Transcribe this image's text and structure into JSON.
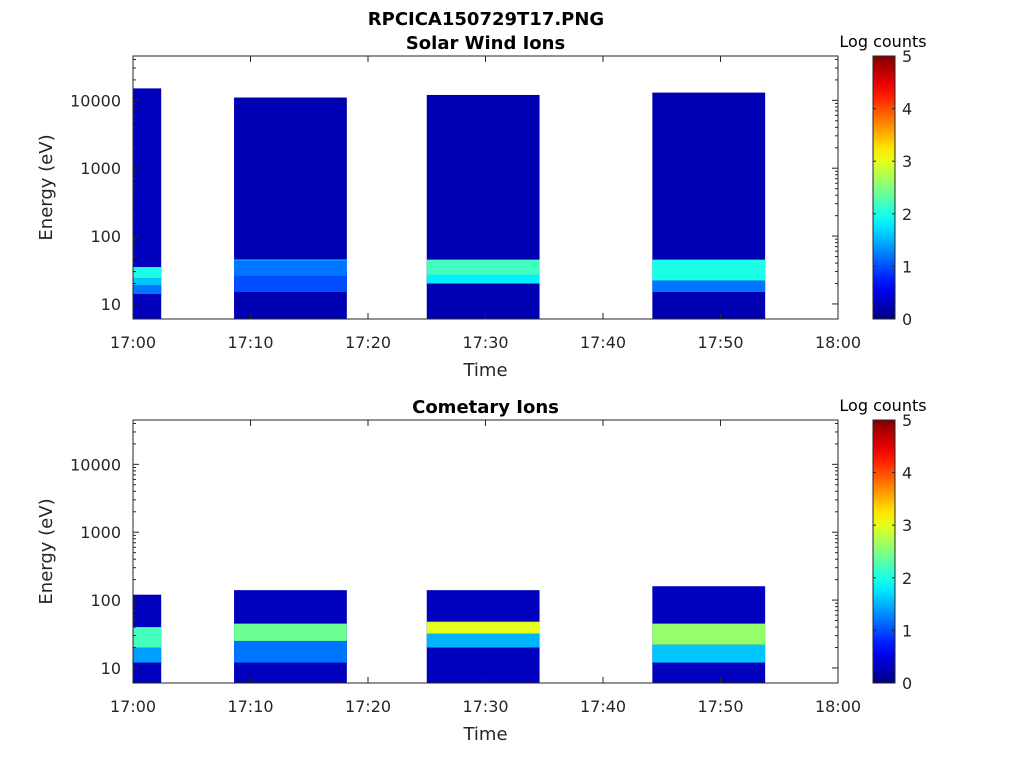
{
  "figure_title": "RPCICA150729T17.PNG",
  "chart_data": [
    {
      "type": "heatmap",
      "title": "Solar Wind Ions",
      "xlabel": "Time",
      "ylabel": "Energy (eV)",
      "x_ticks": [
        "17:00",
        "17:10",
        "17:20",
        "17:30",
        "17:40",
        "17:50",
        "18:00"
      ],
      "x_range": [
        "17:00",
        "18:00"
      ],
      "y_scale": "log",
      "y_ticks": [
        "10",
        "100",
        "1000",
        "10000"
      ],
      "y_range": [
        6,
        45000
      ],
      "colorbar": {
        "label": "Log counts",
        "ticks": [
          "0",
          "1",
          "2",
          "3",
          "4",
          "5"
        ],
        "range": [
          0,
          5
        ],
        "colormap": "jet"
      },
      "time_bins": [
        {
          "t0": 0.0,
          "t1": 2.4,
          "hi": [
            {
              "lo": 6,
              "hi": 15000,
              "v": 0.3
            },
            {
              "lo": 14,
              "hi": 20,
              "v": 1.2
            },
            {
              "lo": 19,
              "hi": 24,
              "v": 1.6
            },
            {
              "lo": 24,
              "hi": 35,
              "v": 2.0
            }
          ]
        },
        {
          "t0": 8.6,
          "t1": 18.2,
          "hi": [
            {
              "lo": 6,
              "hi": 11000,
              "v": 0.25
            },
            {
              "lo": 15,
              "hi": 30,
              "v": 1.0
            },
            {
              "lo": 30,
              "hi": 45,
              "v": 2.0
            },
            {
              "lo": 26,
              "hi": 44,
              "v": 1.2
            }
          ]
        },
        {
          "t0": 25.0,
          "t1": 34.6,
          "hi": [
            {
              "lo": 6,
              "hi": 12000,
              "v": 0.25
            },
            {
              "lo": 25,
              "hi": 45,
              "v": 2.2
            },
            {
              "lo": 20,
              "hi": 27,
              "v": 1.8
            }
          ]
        },
        {
          "t0": 44.2,
          "t1": 53.8,
          "hi": [
            {
              "lo": 6,
              "hi": 13000,
              "v": 0.25
            },
            {
              "lo": 22,
              "hi": 45,
              "v": 2.0
            },
            {
              "lo": 15,
              "hi": 22,
              "v": 1.2
            }
          ]
        }
      ]
    },
    {
      "type": "heatmap",
      "title": "Cometary Ions",
      "xlabel": "Time",
      "ylabel": "Energy (eV)",
      "x_ticks": [
        "17:00",
        "17:10",
        "17:20",
        "17:30",
        "17:40",
        "17:50",
        "18:00"
      ],
      "x_range": [
        "17:00",
        "18:00"
      ],
      "y_scale": "log",
      "y_ticks": [
        "10",
        "100",
        "1000",
        "10000"
      ],
      "y_range": [
        6,
        45000
      ],
      "colorbar": {
        "label": "Log counts",
        "ticks": [
          "0",
          "1",
          "2",
          "3",
          "4",
          "5"
        ],
        "range": [
          0,
          5
        ],
        "colormap": "jet"
      },
      "time_bins": [
        {
          "t0": 0.0,
          "t1": 2.4,
          "hi": [
            {
              "lo": 6,
              "hi": 120,
              "v": 0.3
            },
            {
              "lo": 12,
              "hi": 20,
              "v": 1.4
            },
            {
              "lo": 20,
              "hi": 40,
              "v": 2.2
            }
          ]
        },
        {
          "t0": 8.6,
          "t1": 18.2,
          "hi": [
            {
              "lo": 6,
              "hi": 140,
              "v": 0.3
            },
            {
              "lo": 12,
              "hi": 25,
              "v": 1.2
            },
            {
              "lo": 25,
              "hi": 45,
              "v": 2.4
            }
          ]
        },
        {
          "t0": 25.0,
          "t1": 34.6,
          "hi": [
            {
              "lo": 6,
              "hi": 140,
              "v": 0.3
            },
            {
              "lo": 20,
              "hi": 32,
              "v": 1.5
            },
            {
              "lo": 32,
              "hi": 48,
              "v": 3.0
            }
          ]
        },
        {
          "t0": 44.2,
          "t1": 53.8,
          "hi": [
            {
              "lo": 6,
              "hi": 160,
              "v": 0.3
            },
            {
              "lo": 12,
              "hi": 22,
              "v": 1.6
            },
            {
              "lo": 22,
              "hi": 45,
              "v": 2.6
            }
          ]
        }
      ]
    }
  ]
}
